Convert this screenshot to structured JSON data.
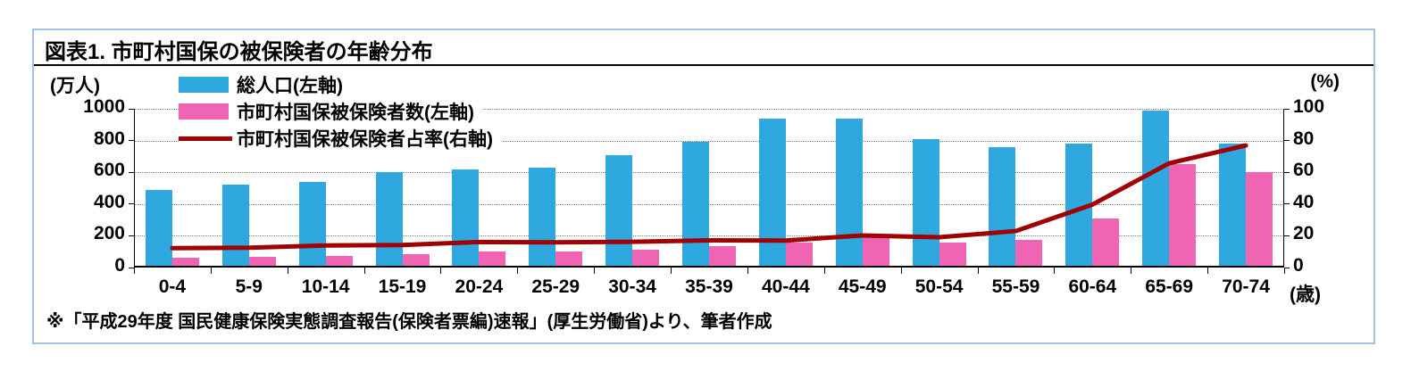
{
  "title": "図表1.  市町村国保の被保険者の年齢分布",
  "footnote": "※「平成29年度 国民健康保険実態調査報告(保険者票編)速報」(厚生労働省)より、筆者作成",
  "axes": {
    "left_unit": "(万人)",
    "right_unit": "(%)",
    "x_unit": "(歳)"
  },
  "colors": {
    "population_bar": "#2FA8DF",
    "insured_bar": "#F064B4",
    "ratio_line": "#A00000",
    "box_border": "#9DC3E6",
    "grid": "#7f7f7f"
  },
  "chart_data": {
    "type": "bar+line",
    "title": "図表1.  市町村国保の被保険者の年齢分布",
    "categories": [
      "0-4",
      "5-9",
      "10-14",
      "15-19",
      "20-24",
      "25-29",
      "30-34",
      "35-39",
      "40-44",
      "45-49",
      "50-54",
      "55-59",
      "60-64",
      "65-69",
      "70-74"
    ],
    "series": [
      {
        "name": "総人口(左軸)",
        "type": "bar",
        "axis": "left",
        "values": [
          490,
          520,
          540,
          600,
          620,
          630,
          710,
          790,
          940,
          940,
          810,
          760,
          780,
          990,
          780
        ]
      },
      {
        "name": "市町村国保被保険者数(左軸)",
        "type": "bar",
        "axis": "left",
        "values": [
          60,
          65,
          75,
          85,
          100,
          100,
          115,
          135,
          160,
          190,
          155,
          175,
          310,
          650,
          600
        ]
      },
      {
        "name": "市町村国保被保険者占率(右軸)",
        "type": "line",
        "axis": "right",
        "values": [
          12.2,
          12.5,
          13.9,
          14.2,
          16.1,
          15.9,
          16.2,
          17.1,
          17.0,
          20.2,
          19.1,
          23.0,
          39.7,
          65.7,
          76.9
        ]
      }
    ],
    "left_axis": {
      "min": 0,
      "max": 1000,
      "ticks": [
        0,
        200,
        400,
        600,
        800,
        1000
      ],
      "unit": "(万人)"
    },
    "right_axis": {
      "min": 0,
      "max": 100,
      "ticks": [
        0,
        20,
        40,
        60,
        80,
        100
      ],
      "unit": "(%)"
    },
    "x_axis_unit": "(歳)",
    "grid": "horizontal-dotted",
    "legend_position": "top-left-inside"
  }
}
